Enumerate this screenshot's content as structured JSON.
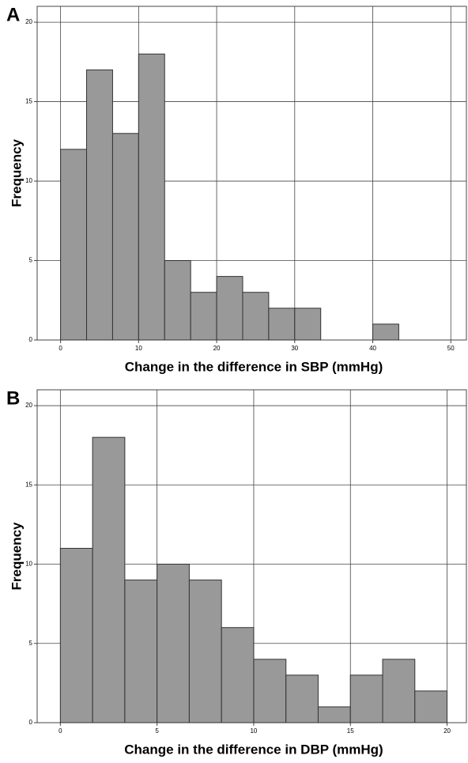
{
  "chart_data": [
    {
      "type": "histogram",
      "label": "A",
      "xlabel": "Change in the difference in SBP (mmHg)",
      "ylabel": "Frequency",
      "bins": [
        0,
        3.333,
        6.667,
        10,
        13.333,
        16.667,
        20,
        23.333,
        26.667,
        30,
        33.333,
        36.667,
        40,
        43.333
      ],
      "values": [
        12,
        17,
        13,
        18,
        5,
        3,
        4,
        3,
        2,
        2,
        0,
        0,
        1
      ],
      "color": "#999999",
      "xlim": [
        -3,
        52
      ],
      "ylim": [
        0,
        21
      ],
      "xticks": [
        0,
        10,
        20,
        30,
        40,
        50
      ],
      "yticks": [
        0,
        5,
        10,
        15,
        20
      ],
      "grid": true
    },
    {
      "type": "histogram",
      "label": "B",
      "xlabel": "Change in the difference in DBP (mmHg)",
      "ylabel": "Frequency",
      "bins": [
        0,
        1.667,
        3.333,
        5,
        6.667,
        8.333,
        10,
        11.667,
        13.333,
        15,
        16.667,
        18.333,
        20
      ],
      "values": [
        11,
        18,
        9,
        10,
        9,
        6,
        4,
        3,
        1,
        3,
        4,
        2
      ],
      "color": "#999999",
      "xlim": [
        -1.2,
        21
      ],
      "ylim": [
        0,
        21
      ],
      "xticks": [
        0,
        5,
        10,
        15,
        20
      ],
      "yticks": [
        0,
        5,
        10,
        15,
        20
      ],
      "grid": true
    }
  ]
}
